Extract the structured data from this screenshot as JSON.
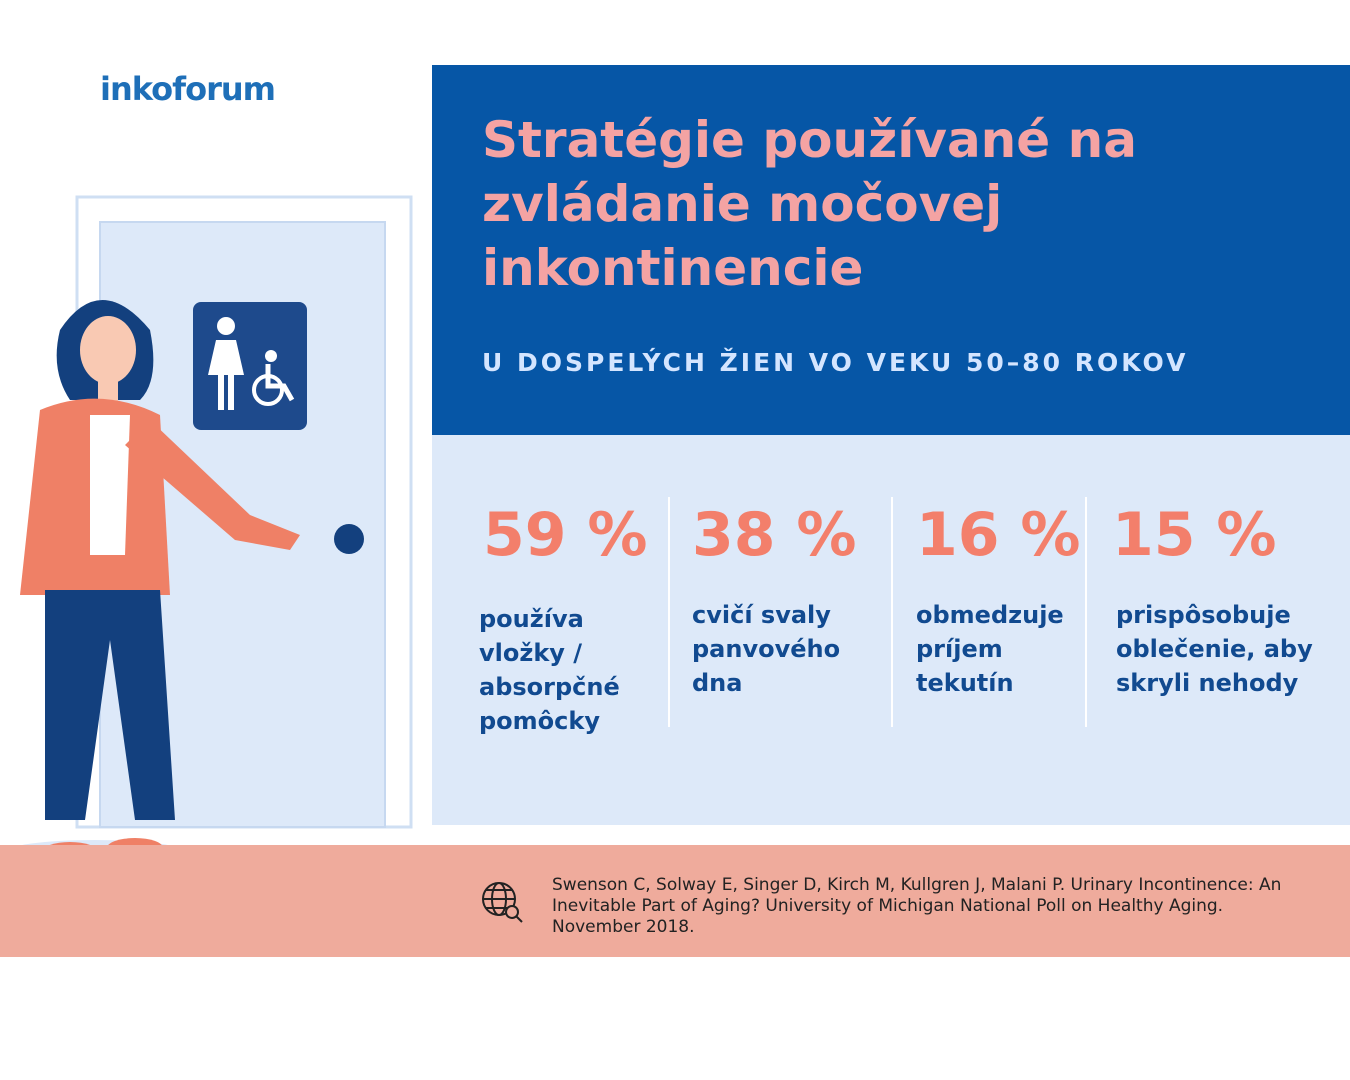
{
  "logo": "inkoforum",
  "header": {
    "title": "Stratégie používané na zvládanie močovej inkontinencie",
    "subtitle": "U DOSPELÝCH ŽIEN VO VEKU 50–80 ROKOV"
  },
  "stats": [
    {
      "value": "59 %",
      "text": "používa vložky / absorpčné pomôcky"
    },
    {
      "value": "38 %",
      "text": "cvičí svaly panvového dna"
    },
    {
      "value": "16 %",
      "text": "obmedzuje príjem tekutín"
    },
    {
      "value": "15 %",
      "text": "prispôsobuje oblečenie, aby skryli nehody"
    }
  ],
  "source": "Swenson C, Solway E, Singer D, Kirch M, Kullgren J, Malani P. Urinary Incontinence: An Inevitable Part of Aging? University of Michigan National Poll on Healthy Aging. November 2018."
}
